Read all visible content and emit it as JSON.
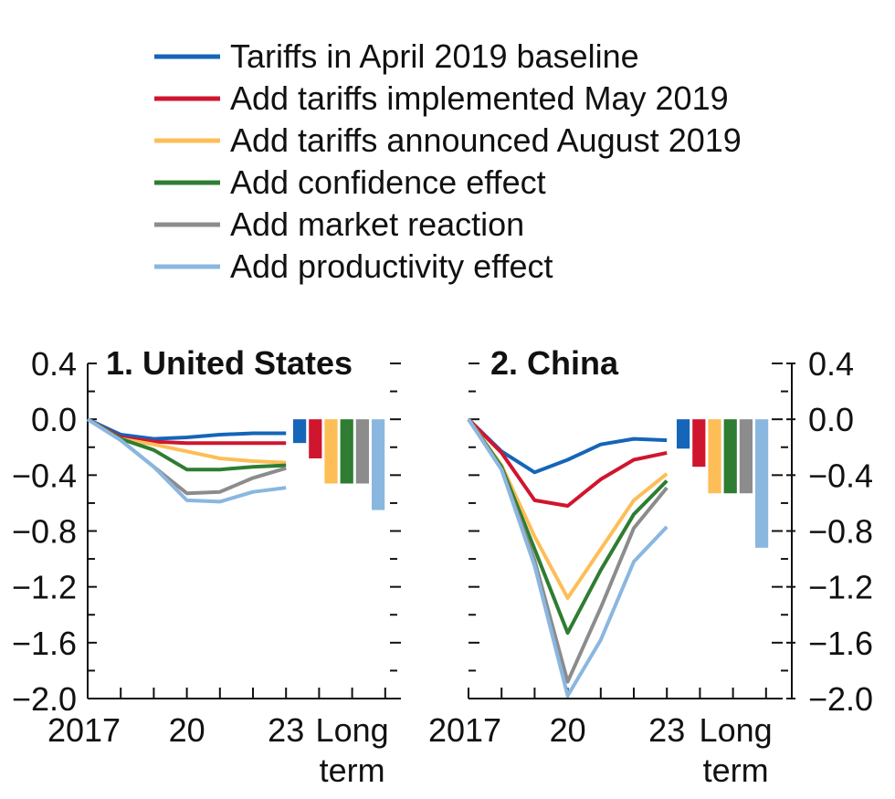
{
  "legend": [
    {
      "label": "Tariffs in April 2019 baseline",
      "color": "#1565b8"
    },
    {
      "label": "Add tariffs implemented May 2019",
      "color": "#d0152f"
    },
    {
      "label": "Add tariffs announced August 2019",
      "color": "#fdbe57"
    },
    {
      "label": "Add confidence effect",
      "color": "#2e7d32"
    },
    {
      "label": "Add market reaction",
      "color": "#8c8c8c"
    },
    {
      "label": "Add productivity effect",
      "color": "#8ab7e0"
    }
  ],
  "chart_data": [
    {
      "type": "line",
      "title": "1. United States",
      "x": [
        "2017",
        "2018",
        "2019",
        "2020",
        "2021",
        "2022",
        "2023"
      ],
      "x_tick_labels": [
        "2017",
        "20",
        "23"
      ],
      "bar_category": "Long term",
      "bar_category_lines": [
        "Long",
        "term"
      ],
      "ylim": [
        -2.0,
        0.4
      ],
      "y_ticks": [
        "0.4",
        "0.0",
        "−0.4",
        "−0.8",
        "−1.2",
        "−1.6",
        "−2.0"
      ],
      "y_axis_side": "left",
      "series": [
        {
          "name": "Tariffs in April 2019 baseline",
          "values": [
            0.0,
            -0.11,
            -0.14,
            -0.13,
            -0.11,
            -0.1,
            -0.1
          ],
          "long_term": -0.17
        },
        {
          "name": "Add tariffs implemented May 2019",
          "values": [
            0.0,
            -0.13,
            -0.16,
            -0.17,
            -0.17,
            -0.17,
            -0.17
          ],
          "long_term": -0.28
        },
        {
          "name": "Add tariffs announced August 2019",
          "values": [
            0.0,
            -0.14,
            -0.18,
            -0.23,
            -0.28,
            -0.3,
            -0.31
          ],
          "long_term": -0.46
        },
        {
          "name": "Add confidence effect",
          "values": [
            0.0,
            -0.14,
            -0.22,
            -0.36,
            -0.36,
            -0.34,
            -0.33
          ],
          "long_term": -0.46
        },
        {
          "name": "Add market reaction",
          "values": [
            0.0,
            -0.15,
            -0.34,
            -0.53,
            -0.52,
            -0.42,
            -0.35
          ],
          "long_term": -0.46
        },
        {
          "name": "Add productivity effect",
          "values": [
            0.0,
            -0.15,
            -0.34,
            -0.58,
            -0.59,
            -0.52,
            -0.49
          ],
          "long_term": -0.65
        }
      ]
    },
    {
      "type": "line",
      "title": "2. China",
      "x": [
        "2017",
        "2018",
        "2019",
        "2020",
        "2021",
        "2022",
        "2023"
      ],
      "x_tick_labels": [
        "2017",
        "20",
        "23"
      ],
      "bar_category": "Long term",
      "bar_category_lines": [
        "Long",
        "term"
      ],
      "ylim": [
        -2.0,
        0.4
      ],
      "y_ticks": [
        "0.4",
        "0.0",
        "−0.4",
        "−0.8",
        "−1.2",
        "−1.6",
        "−2.0"
      ],
      "y_axis_side": "right",
      "series": [
        {
          "name": "Tariffs in April 2019 baseline",
          "values": [
            0.0,
            -0.23,
            -0.38,
            -0.29,
            -0.18,
            -0.14,
            -0.15
          ],
          "long_term": -0.21
        },
        {
          "name": "Add tariffs implemented May 2019",
          "values": [
            0.0,
            -0.24,
            -0.58,
            -0.62,
            -0.43,
            -0.29,
            -0.24
          ],
          "long_term": -0.34
        },
        {
          "name": "Add tariffs announced August 2019",
          "values": [
            0.0,
            -0.33,
            -0.84,
            -1.28,
            -0.93,
            -0.58,
            -0.39
          ],
          "long_term": -0.53
        },
        {
          "name": "Add confidence effect",
          "values": [
            0.0,
            -0.34,
            -0.93,
            -1.53,
            -1.08,
            -0.68,
            -0.44
          ],
          "long_term": -0.53
        },
        {
          "name": "Add market reaction",
          "values": [
            0.0,
            -0.36,
            -1.01,
            -1.88,
            -1.35,
            -0.78,
            -0.49
          ],
          "long_term": -0.53
        },
        {
          "name": "Add productivity effect",
          "values": [
            0.0,
            -0.36,
            -1.05,
            -1.98,
            -1.58,
            -1.02,
            -0.77
          ],
          "long_term": -0.92
        }
      ]
    }
  ]
}
